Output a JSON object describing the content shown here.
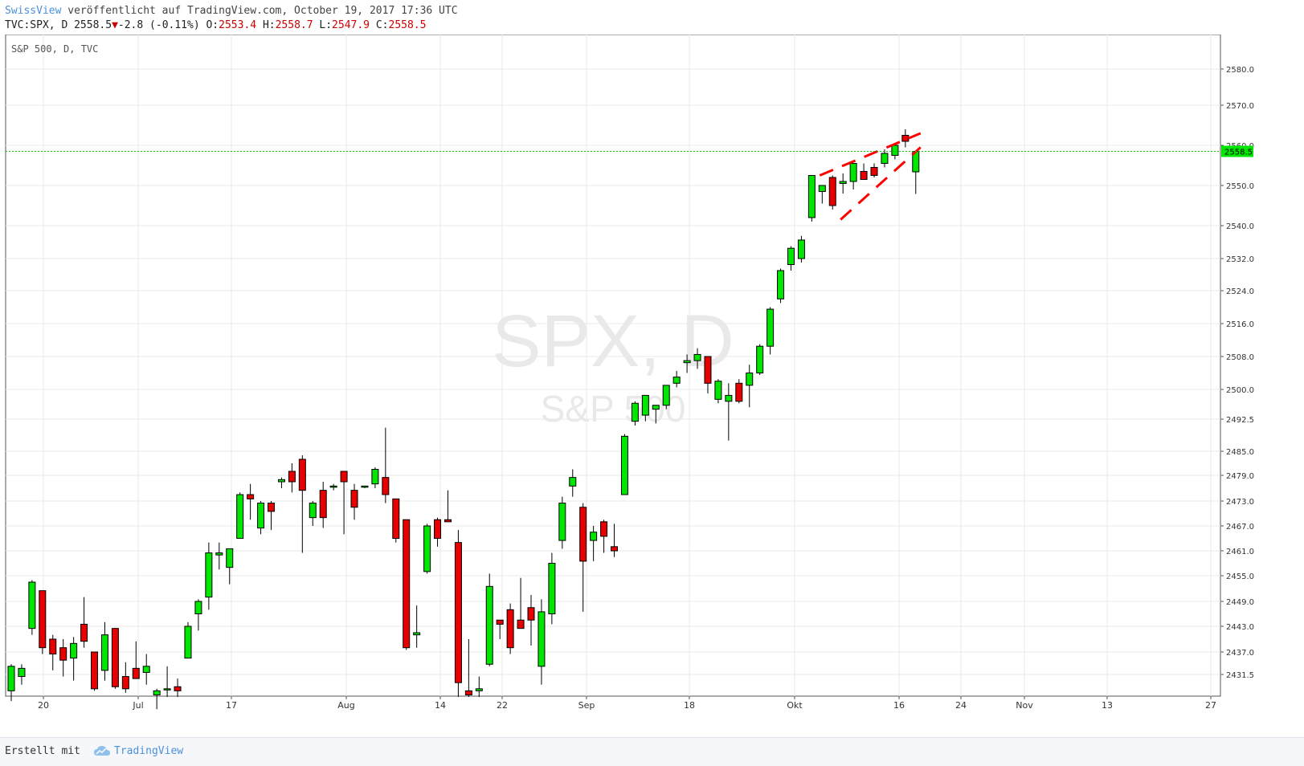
{
  "header": {
    "brand": "SwissView",
    "published": " veröffentlicht auf TradingView.com, October 19, 2017 17:36 UTC",
    "symbol": "TVC:SPX, D",
    "last": "2558.5",
    "change": "-2.8 (-0.11%)",
    "o_label": "O:",
    "o_value": "2553.4",
    "h_label": "H:",
    "h_value": "2558.7",
    "l_label": "L:",
    "l_value": "2547.9",
    "c_label": "C:",
    "c_value": "2558.5"
  },
  "footer": {
    "made_with": "Erstellt mit",
    "tv_label": "TradingView"
  },
  "colors": {
    "up": "#00e600",
    "down": "#e60000",
    "grid": "#e8e8e8",
    "price_line": "#00cc00",
    "watermark": "#e9e9e9",
    "annotation": "#ff0000"
  },
  "chart_data": {
    "type": "candlestick",
    "title": "S&P 500, D, TVC",
    "watermark": "SPX, D",
    "watermark_sub": "S&P 500",
    "last_price_label": "2558.5",
    "x_tick_labels": [
      "20",
      "Jul",
      "17",
      "Aug",
      "14",
      "22",
      "Sep",
      "18",
      "Okt",
      "16",
      "24",
      "Nov",
      "13",
      "27"
    ],
    "y_tick_labels": [
      "2580.0",
      "2570.0",
      "2560.0",
      "2550.0",
      "2540.0",
      "2532.0",
      "2524.0",
      "2516.0",
      "2508.0",
      "2500.0",
      "2492.5",
      "2485.0",
      "2479.0",
      "2473.0",
      "2467.0",
      "2461.0",
      "2455.0",
      "2449.0",
      "2443.0",
      "2437.0",
      "2431.5"
    ],
    "candles": [
      {
        "o": 2427.5,
        "h": 2434.0,
        "l": 2425.0,
        "c": 2433.5
      },
      {
        "o": 2431.0,
        "h": 2434.0,
        "l": 2429.0,
        "c": 2433.0
      },
      {
        "o": 2442.5,
        "h": 2454.0,
        "l": 2441.0,
        "c": 2453.5
      },
      {
        "o": 2451.5,
        "h": 2451.5,
        "l": 2436.5,
        "c": 2438.0
      },
      {
        "o": 2440.0,
        "h": 2441.0,
        "l": 2432.5,
        "c": 2436.5
      },
      {
        "o": 2438.0,
        "h": 2440.0,
        "l": 2431.0,
        "c": 2435.0
      },
      {
        "o": 2435.5,
        "h": 2440.5,
        "l": 2430.0,
        "c": 2439.0
      },
      {
        "o": 2443.5,
        "h": 2450.0,
        "l": 2438.0,
        "c": 2439.5
      },
      {
        "o": 2437.0,
        "h": 2437.0,
        "l": 2427.5,
        "c": 2428.0
      },
      {
        "o": 2432.5,
        "h": 2444.0,
        "l": 2430.0,
        "c": 2441.0
      },
      {
        "o": 2442.5,
        "h": 2442.5,
        "l": 2428.0,
        "c": 2428.5
      },
      {
        "o": 2431.0,
        "h": 2434.5,
        "l": 2427.0,
        "c": 2428.0
      },
      {
        "o": 2433.0,
        "h": 2439.5,
        "l": 2430.5,
        "c": 2430.5
      },
      {
        "o": 2432.0,
        "h": 2436.5,
        "l": 2429.0,
        "c": 2433.5
      },
      {
        "o": 2426.5,
        "h": 2428.0,
        "l": 2423.0,
        "c": 2427.5
      },
      {
        "o": 2428.0,
        "h": 2433.5,
        "l": 2426.0,
        "c": 2428.0
      },
      {
        "o": 2428.5,
        "h": 2430.5,
        "l": 2426.0,
        "c": 2427.5
      },
      {
        "o": 2435.5,
        "h": 2444.0,
        "l": 2435.5,
        "c": 2443.0
      },
      {
        "o": 2446.0,
        "h": 2449.5,
        "l": 2442.0,
        "c": 2449.0
      },
      {
        "o": 2450.0,
        "h": 2463.0,
        "l": 2447.0,
        "c": 2460.5
      },
      {
        "o": 2460.0,
        "h": 2463.0,
        "l": 2456.5,
        "c": 2460.5
      },
      {
        "o": 2457.0,
        "h": 2461.5,
        "l": 2453.0,
        "c": 2461.5
      },
      {
        "o": 2464.0,
        "h": 2475.0,
        "l": 2464.0,
        "c": 2474.5
      },
      {
        "o": 2474.5,
        "h": 2477.0,
        "l": 2468.5,
        "c": 2473.5
      },
      {
        "o": 2466.5,
        "h": 2473.0,
        "l": 2465.0,
        "c": 2472.5
      },
      {
        "o": 2472.5,
        "h": 2473.0,
        "l": 2466.0,
        "c": 2470.5
      },
      {
        "o": 2477.5,
        "h": 2478.5,
        "l": 2476.0,
        "c": 2478.0
      },
      {
        "o": 2480.0,
        "h": 2482.0,
        "l": 2475.0,
        "c": 2477.5
      },
      {
        "o": 2483.0,
        "h": 2484.0,
        "l": 2460.5,
        "c": 2475.5
      },
      {
        "o": 2469.0,
        "h": 2473.0,
        "l": 2467.0,
        "c": 2472.5
      },
      {
        "o": 2475.5,
        "h": 2477.5,
        "l": 2466.5,
        "c": 2469.0
      },
      {
        "o": 2476.5,
        "h": 2477.0,
        "l": 2475.5,
        "c": 2476.5
      },
      {
        "o": 2480.0,
        "h": 2480.0,
        "l": 2465.0,
        "c": 2477.5
      },
      {
        "o": 2475.5,
        "h": 2477.0,
        "l": 2468.5,
        "c": 2471.5
      },
      {
        "o": 2476.5,
        "h": 2476.5,
        "l": 2476.0,
        "c": 2476.5
      },
      {
        "o": 2477.0,
        "h": 2481.0,
        "l": 2476.0,
        "c": 2480.5
      },
      {
        "o": 2478.5,
        "h": 2490.5,
        "l": 2472.5,
        "c": 2474.5
      },
      {
        "o": 2473.5,
        "h": 2473.5,
        "l": 2463.0,
        "c": 2464.0
      },
      {
        "o": 2468.5,
        "h": 2468.5,
        "l": 2437.5,
        "c": 2438.0
      },
      {
        "o": 2441.0,
        "h": 2448.0,
        "l": 2438.0,
        "c": 2441.5
      },
      {
        "o": 2456.0,
        "h": 2467.5,
        "l": 2455.5,
        "c": 2467.0
      },
      {
        "o": 2468.5,
        "h": 2469.0,
        "l": 2462.0,
        "c": 2464.0
      },
      {
        "o": 2468.5,
        "h": 2475.5,
        "l": 2468.0,
        "c": 2468.0
      },
      {
        "o": 2463.0,
        "h": 2466.0,
        "l": 2426.0,
        "c": 2429.5
      },
      {
        "o": 2427.5,
        "h": 2440.0,
        "l": 2426.0,
        "c": 2426.5
      },
      {
        "o": 2427.5,
        "h": 2431.0,
        "l": 2426.0,
        "c": 2428.0
      },
      {
        "o": 2434.0,
        "h": 2455.5,
        "l": 2433.5,
        "c": 2452.5
      },
      {
        "o": 2444.5,
        "h": 2444.5,
        "l": 2440.0,
        "c": 2443.5
      },
      {
        "o": 2447.0,
        "h": 2448.5,
        "l": 2436.5,
        "c": 2438.0
      },
      {
        "o": 2444.5,
        "h": 2454.5,
        "l": 2442.5,
        "c": 2442.5
      },
      {
        "o": 2447.5,
        "h": 2450.5,
        "l": 2438.5,
        "c": 2444.5
      },
      {
        "o": 2433.5,
        "h": 2449.5,
        "l": 2429.0,
        "c": 2446.5
      },
      {
        "o": 2446.0,
        "h": 2460.5,
        "l": 2443.5,
        "c": 2458.0
      },
      {
        "o": 2463.5,
        "h": 2474.0,
        "l": 2461.5,
        "c": 2472.5
      },
      {
        "o": 2476.5,
        "h": 2480.5,
        "l": 2474.0,
        "c": 2478.5
      },
      {
        "o": 2471.5,
        "h": 2472.5,
        "l": 2446.5,
        "c": 2458.5
      },
      {
        "o": 2463.5,
        "h": 2467.0,
        "l": 2458.5,
        "c": 2465.5
      },
      {
        "o": 2468.0,
        "h": 2468.5,
        "l": 2460.5,
        "c": 2464.5
      },
      {
        "o": 2462.0,
        "h": 2467.5,
        "l": 2459.5,
        "c": 2461.0
      },
      {
        "o": 2474.5,
        "h": 2489.0,
        "l": 2474.5,
        "c": 2488.5
      },
      {
        "o": 2492.0,
        "h": 2497.0,
        "l": 2491.0,
        "c": 2496.5
      },
      {
        "o": 2493.5,
        "h": 2498.5,
        "l": 2492.0,
        "c": 2498.5
      },
      {
        "o": 2495.0,
        "h": 2496.0,
        "l": 2491.5,
        "c": 2496.0
      },
      {
        "o": 2496.0,
        "h": 2501.0,
        "l": 2495.0,
        "c": 2501.0
      },
      {
        "o": 2501.5,
        "h": 2504.5,
        "l": 2500.5,
        "c": 2503.0
      },
      {
        "o": 2506.5,
        "h": 2508.5,
        "l": 2504.0,
        "c": 2507.0
      },
      {
        "o": 2507.0,
        "h": 2510.0,
        "l": 2505.0,
        "c": 2508.5
      },
      {
        "o": 2508.0,
        "h": 2508.0,
        "l": 2499.0,
        "c": 2501.5
      },
      {
        "o": 2497.5,
        "h": 2502.5,
        "l": 2496.5,
        "c": 2502.0
      },
      {
        "o": 2497.0,
        "h": 2501.5,
        "l": 2487.5,
        "c": 2498.5
      },
      {
        "o": 2501.5,
        "h": 2502.5,
        "l": 2496.5,
        "c": 2497.0
      },
      {
        "o": 2501.0,
        "h": 2506.0,
        "l": 2495.5,
        "c": 2504.0
      },
      {
        "o": 2504.0,
        "h": 2511.0,
        "l": 2503.5,
        "c": 2510.5
      },
      {
        "o": 2510.5,
        "h": 2520.0,
        "l": 2508.5,
        "c": 2519.5
      },
      {
        "o": 2522.0,
        "h": 2529.5,
        "l": 2521.0,
        "c": 2529.0
      },
      {
        "o": 2530.5,
        "h": 2535.0,
        "l": 2529.0,
        "c": 2534.5
      },
      {
        "o": 2532.0,
        "h": 2537.5,
        "l": 2531.0,
        "c": 2536.5
      },
      {
        "o": 2542.0,
        "h": 2552.5,
        "l": 2541.0,
        "c": 2552.5
      },
      {
        "o": 2548.5,
        "h": 2550.0,
        "l": 2545.5,
        "c": 2550.0
      },
      {
        "o": 2552.0,
        "h": 2552.5,
        "l": 2544.0,
        "c": 2545.0
      },
      {
        "o": 2550.5,
        "h": 2553.0,
        "l": 2548.0,
        "c": 2551.0
      },
      {
        "o": 2551.0,
        "h": 2555.5,
        "l": 2549.0,
        "c": 2555.5
      },
      {
        "o": 2553.5,
        "h": 2555.5,
        "l": 2552.5,
        "c": 2551.5
      },
      {
        "o": 2554.5,
        "h": 2555.5,
        "l": 2552.0,
        "c": 2552.5
      },
      {
        "o": 2555.5,
        "h": 2559.0,
        "l": 2554.5,
        "c": 2558.0
      },
      {
        "o": 2557.5,
        "h": 2560.5,
        "l": 2556.5,
        "c": 2560.0
      },
      {
        "o": 2562.5,
        "h": 2564.0,
        "l": 2559.5,
        "c": 2561.0
      },
      {
        "o": 2553.4,
        "h": 2558.7,
        "l": 2547.9,
        "c": 2558.5
      }
    ]
  }
}
